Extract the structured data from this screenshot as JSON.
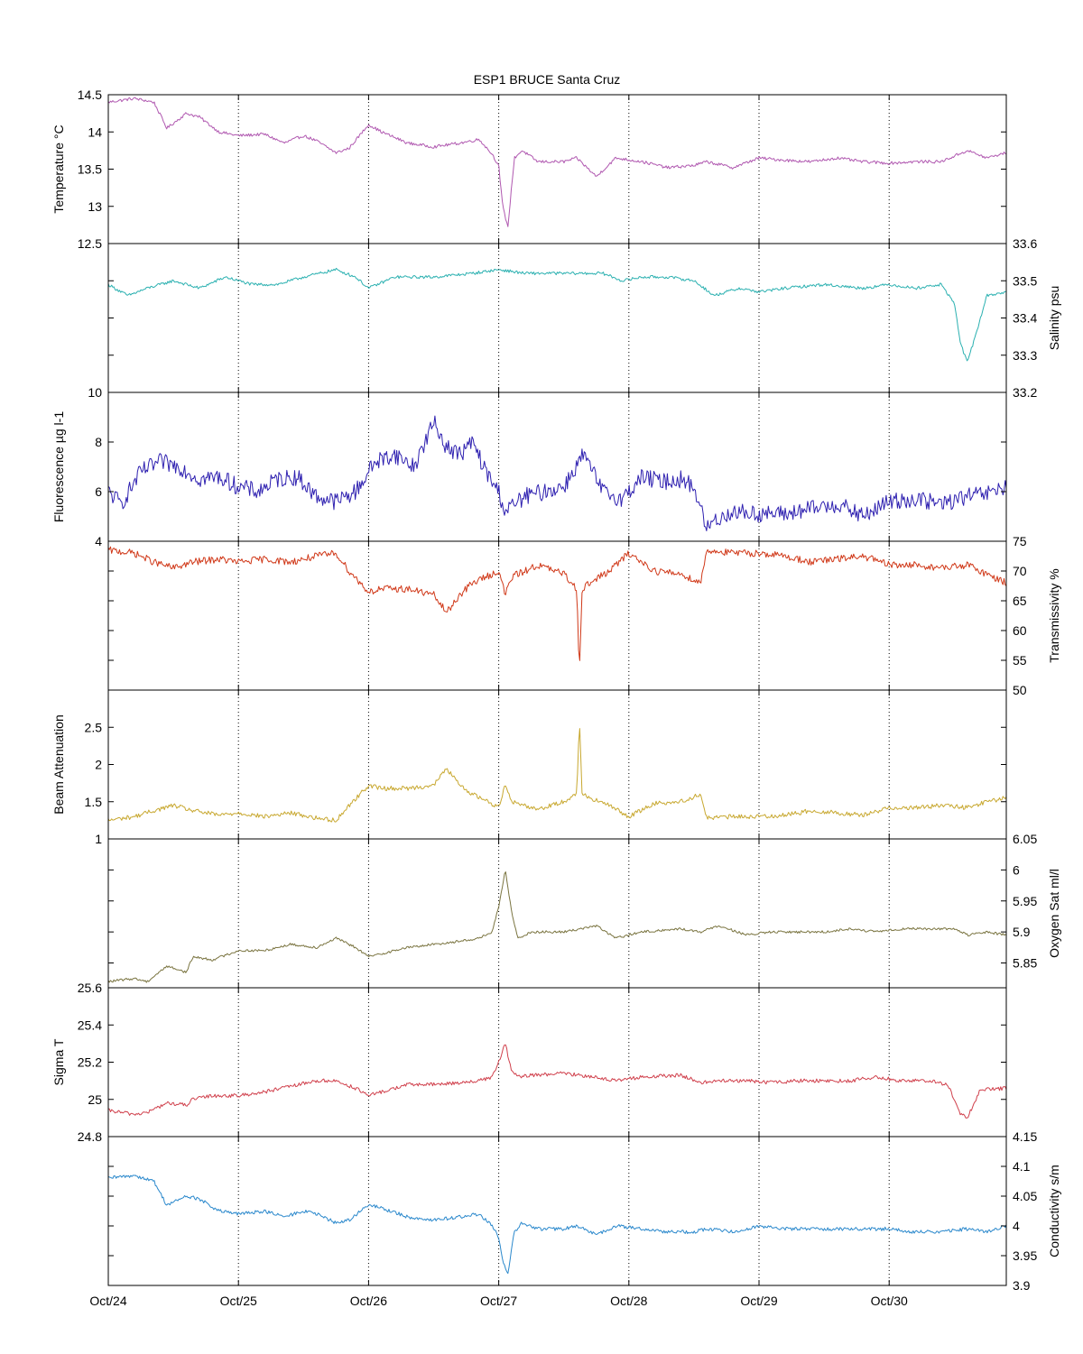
{
  "chart_data": [
    {
      "type": "line",
      "title": "ESP1 BRUCE Santa Cruz",
      "ylabel": "Temperature °C",
      "ylabel_side": "left",
      "ylim": [
        12.5,
        14.5
      ],
      "yticks": [
        "12.5",
        "13",
        "13.5",
        "14",
        "14.5"
      ],
      "xlim": [
        0,
        6.9
      ],
      "grid": "vertical dotted",
      "series": [
        {
          "color": "#b058b0",
          "x": [
            0,
            0.2,
            0.35,
            0.45,
            0.6,
            0.7,
            0.85,
            1.0,
            1.2,
            1.35,
            1.5,
            1.6,
            1.75,
            1.85,
            2.0,
            2.1,
            2.3,
            2.5,
            2.7,
            2.85,
            2.95,
            3.0,
            3.03,
            3.07,
            3.12,
            3.18,
            3.3,
            3.5,
            3.6,
            3.75,
            3.9,
            4.1,
            4.3,
            4.5,
            4.6,
            4.8,
            5.0,
            5.2,
            5.4,
            5.6,
            5.8,
            6.0,
            6.2,
            6.4,
            6.6,
            6.75,
            6.9
          ],
          "y": [
            14.4,
            14.45,
            14.4,
            14.05,
            14.25,
            14.2,
            14.0,
            13.95,
            13.97,
            13.85,
            13.95,
            13.88,
            13.72,
            13.78,
            14.1,
            14.0,
            13.85,
            13.8,
            13.85,
            13.9,
            13.7,
            13.55,
            13.0,
            12.72,
            13.65,
            13.75,
            13.6,
            13.6,
            13.65,
            13.4,
            13.65,
            13.6,
            13.52,
            13.55,
            13.6,
            13.52,
            13.65,
            13.62,
            13.6,
            13.65,
            13.6,
            13.58,
            13.6,
            13.6,
            13.75,
            13.65,
            13.72
          ],
          "noise": 0.02
        }
      ]
    },
    {
      "type": "line",
      "ylabel": "Salinity psu",
      "ylabel_side": "right",
      "ylim": [
        33.2,
        33.6
      ],
      "yticks": [
        "33.2",
        "33.3",
        "33.4",
        "33.5",
        "33.6"
      ],
      "xlim": [
        0,
        6.9
      ],
      "grid": "vertical dotted",
      "series": [
        {
          "color": "#2ab0b0",
          "x": [
            0,
            0.15,
            0.3,
            0.5,
            0.7,
            0.9,
            1.1,
            1.3,
            1.5,
            1.75,
            1.9,
            2.0,
            2.2,
            2.5,
            2.8,
            3.0,
            3.2,
            3.5,
            3.8,
            3.95,
            4.1,
            4.3,
            4.5,
            4.58,
            4.65,
            4.85,
            5.0,
            5.2,
            5.5,
            5.8,
            6.0,
            6.2,
            6.4,
            6.5,
            6.55,
            6.6,
            6.67,
            6.75,
            6.9
          ],
          "y": [
            33.49,
            33.46,
            33.48,
            33.5,
            33.48,
            33.51,
            33.49,
            33.49,
            33.51,
            33.53,
            33.51,
            33.48,
            33.51,
            33.51,
            33.52,
            33.53,
            33.52,
            33.52,
            33.52,
            33.5,
            33.51,
            33.51,
            33.5,
            33.48,
            33.46,
            33.48,
            33.47,
            33.48,
            33.49,
            33.48,
            33.49,
            33.48,
            33.49,
            33.44,
            33.33,
            33.28,
            33.36,
            33.46,
            33.47
          ],
          "noise": 0.004
        }
      ]
    },
    {
      "type": "line",
      "ylabel": "Fluorescence µg l-1",
      "ylabel_side": "left",
      "ylim": [
        4,
        10
      ],
      "yticks": [
        "4",
        "6",
        "8",
        "10"
      ],
      "xlim": [
        0,
        6.9
      ],
      "grid": "vertical dotted",
      "series": [
        {
          "color": "#2e20b0",
          "x": [
            0,
            0.1,
            0.25,
            0.4,
            0.55,
            0.7,
            0.85,
            1.0,
            1.15,
            1.3,
            1.45,
            1.6,
            1.75,
            1.9,
            2.05,
            2.2,
            2.35,
            2.5,
            2.6,
            2.7,
            2.8,
            2.9,
            3.0,
            3.05,
            3.2,
            3.35,
            3.5,
            3.65,
            3.8,
            3.95,
            4.1,
            4.25,
            4.4,
            4.5,
            4.6,
            4.65,
            4.8,
            5.0,
            5.2,
            5.4,
            5.6,
            5.8,
            6.0,
            6.2,
            6.4,
            6.6,
            6.75,
            6.9
          ],
          "y": [
            6.0,
            5.5,
            6.8,
            7.2,
            7.0,
            6.5,
            6.6,
            6.2,
            6.0,
            6.5,
            6.6,
            5.8,
            5.6,
            6.0,
            7.2,
            7.5,
            7.0,
            8.8,
            7.8,
            7.5,
            8.0,
            6.8,
            6.0,
            5.2,
            5.8,
            6.0,
            6.2,
            7.5,
            6.0,
            5.7,
            6.6,
            6.4,
            6.5,
            6.2,
            4.5,
            4.8,
            5.2,
            5.1,
            5.1,
            5.3,
            5.5,
            5.0,
            5.6,
            5.7,
            5.5,
            5.8,
            5.9,
            6.2
          ],
          "noise": 0.35
        }
      ]
    },
    {
      "type": "line",
      "ylabel": "Transmissivity %",
      "ylabel_side": "right",
      "ylim": [
        50,
        75
      ],
      "yticks": [
        "50",
        "55",
        "60",
        "65",
        "70",
        "75"
      ],
      "xlim": [
        0,
        6.9
      ],
      "grid": "vertical dotted",
      "series": [
        {
          "color": "#d03818",
          "x": [
            0,
            0.2,
            0.35,
            0.5,
            0.65,
            0.85,
            1.0,
            1.2,
            1.4,
            1.6,
            1.75,
            1.85,
            2.0,
            2.1,
            2.3,
            2.5,
            2.6,
            2.7,
            2.8,
            2.9,
            3.0,
            3.05,
            3.1,
            3.3,
            3.5,
            3.6,
            3.62,
            3.64,
            3.7,
            3.85,
            4.0,
            4.2,
            4.4,
            4.55,
            4.6,
            4.8,
            5.0,
            5.2,
            5.4,
            5.6,
            5.8,
            6.0,
            6.2,
            6.4,
            6.6,
            6.75,
            6.9
          ],
          "y": [
            73.5,
            73.0,
            71.5,
            70.5,
            71.5,
            72.0,
            71.5,
            72.0,
            71.5,
            72.5,
            73.0,
            70.0,
            66.5,
            67.0,
            67.0,
            66.0,
            63.0,
            66.0,
            68.0,
            69.0,
            70.0,
            66.0,
            69.0,
            71.0,
            69.5,
            67.0,
            53.0,
            67.0,
            68.0,
            70.0,
            73.0,
            70.0,
            69.5,
            68.0,
            73.5,
            73.0,
            73.0,
            72.5,
            71.5,
            72.0,
            72.5,
            71.0,
            71.0,
            70.5,
            71.0,
            69.5,
            68.0
          ],
          "noise": 0.6
        }
      ]
    },
    {
      "type": "line",
      "ylabel": "Beam Attenuation",
      "ylabel_side": "left",
      "ylim": [
        1,
        3
      ],
      "yticks": [
        "1",
        "1.5",
        "2",
        "2.5"
      ],
      "xlim": [
        0,
        6.9
      ],
      "grid": "vertical dotted",
      "series": [
        {
          "color": "#c8a830",
          "x": [
            0,
            0.2,
            0.35,
            0.5,
            0.65,
            0.85,
            1.0,
            1.2,
            1.4,
            1.6,
            1.75,
            1.85,
            2.0,
            2.1,
            2.3,
            2.5,
            2.6,
            2.7,
            2.8,
            2.9,
            3.0,
            3.05,
            3.1,
            3.3,
            3.5,
            3.6,
            3.62,
            3.64,
            3.7,
            3.85,
            4.0,
            4.2,
            4.4,
            4.55,
            4.6,
            4.8,
            5.0,
            5.2,
            5.4,
            5.6,
            5.8,
            6.0,
            6.2,
            6.4,
            6.6,
            6.75,
            6.9
          ],
          "y": [
            1.25,
            1.3,
            1.38,
            1.45,
            1.38,
            1.32,
            1.35,
            1.3,
            1.35,
            1.28,
            1.25,
            1.45,
            1.72,
            1.68,
            1.68,
            1.72,
            1.95,
            1.72,
            1.6,
            1.52,
            1.42,
            1.75,
            1.5,
            1.4,
            1.5,
            1.62,
            2.6,
            1.62,
            1.55,
            1.45,
            1.3,
            1.48,
            1.5,
            1.6,
            1.28,
            1.3,
            1.3,
            1.32,
            1.38,
            1.35,
            1.32,
            1.42,
            1.42,
            1.45,
            1.42,
            1.5,
            1.55
          ],
          "noise": 0.03
        }
      ]
    },
    {
      "type": "line",
      "ylabel": "Oxygen Sat ml/l",
      "ylabel_side": "right",
      "ylim": [
        5.81,
        6.05
      ],
      "yticks": [
        "5.85",
        "5.9",
        "5.95",
        "6",
        "6.05"
      ],
      "xlim": [
        0,
        6.9
      ],
      "grid": "vertical dotted",
      "series": [
        {
          "color": "#7a7440",
          "x": [
            0,
            0.2,
            0.3,
            0.45,
            0.6,
            0.65,
            0.8,
            1.0,
            1.2,
            1.4,
            1.6,
            1.75,
            1.9,
            2.0,
            2.1,
            2.3,
            2.5,
            2.7,
            2.85,
            2.95,
            3.0,
            3.05,
            3.1,
            3.15,
            3.25,
            3.5,
            3.75,
            3.9,
            4.1,
            4.4,
            4.55,
            4.7,
            4.9,
            5.1,
            5.3,
            5.5,
            5.7,
            5.9,
            6.1,
            6.3,
            6.5,
            6.6,
            6.75,
            6.9
          ],
          "y": [
            5.82,
            5.825,
            5.82,
            5.845,
            5.835,
            5.86,
            5.855,
            5.87,
            5.87,
            5.88,
            5.875,
            5.89,
            5.875,
            5.86,
            5.865,
            5.875,
            5.88,
            5.885,
            5.89,
            5.9,
            5.94,
            6.0,
            5.93,
            5.89,
            5.9,
            5.9,
            5.91,
            5.89,
            5.9,
            5.905,
            5.9,
            5.91,
            5.895,
            5.9,
            5.9,
            5.9,
            5.905,
            5.9,
            5.905,
            5.905,
            5.905,
            5.895,
            5.9,
            5.895
          ],
          "noise": 0.002
        }
      ]
    },
    {
      "type": "line",
      "ylabel": "Sigma T",
      "ylabel_side": "left",
      "ylim": [
        24.8,
        25.6
      ],
      "yticks": [
        "24.8",
        "25",
        "25.2",
        "25.4",
        "25.6"
      ],
      "xlim": [
        0,
        6.9
      ],
      "grid": "vertical dotted",
      "series": [
        {
          "color": "#d0404c",
          "x": [
            0,
            0.2,
            0.3,
            0.45,
            0.6,
            0.65,
            0.8,
            1.0,
            1.2,
            1.4,
            1.6,
            1.75,
            1.9,
            2.0,
            2.1,
            2.3,
            2.5,
            2.7,
            2.85,
            2.95,
            3.0,
            3.05,
            3.1,
            3.15,
            3.25,
            3.5,
            3.75,
            3.9,
            4.1,
            4.4,
            4.55,
            4.7,
            4.9,
            5.1,
            5.3,
            5.5,
            5.7,
            5.9,
            6.1,
            6.3,
            6.45,
            6.55,
            6.6,
            6.7,
            6.9
          ],
          "y": [
            24.94,
            24.92,
            24.93,
            24.98,
            24.97,
            25.0,
            25.02,
            25.02,
            25.04,
            25.07,
            25.1,
            25.1,
            25.06,
            25.02,
            25.04,
            25.08,
            25.08,
            25.09,
            25.1,
            25.12,
            25.2,
            25.3,
            25.15,
            25.12,
            25.13,
            25.14,
            25.12,
            25.1,
            25.12,
            25.13,
            25.09,
            25.1,
            25.1,
            25.09,
            25.1,
            25.1,
            25.1,
            25.12,
            25.1,
            25.1,
            25.08,
            24.92,
            24.9,
            25.05,
            25.06
          ],
          "noise": 0.01
        }
      ]
    },
    {
      "type": "line",
      "ylabel": "Conductivity s/m",
      "ylabel_side": "right",
      "ylim": [
        3.9,
        4.15
      ],
      "yticks": [
        "3.9",
        "3.95",
        "4",
        "4.05",
        "4.1",
        "4.15"
      ],
      "xlim": [
        0,
        6.9
      ],
      "xticks": [
        "Oct/24",
        "Oct/25",
        "Oct/26",
        "Oct/27",
        "Oct/28",
        "Oct/29",
        "Oct/30"
      ],
      "grid": "vertical dotted",
      "series": [
        {
          "color": "#2a88cc",
          "x": [
            0,
            0.2,
            0.35,
            0.45,
            0.6,
            0.7,
            0.85,
            1.0,
            1.2,
            1.35,
            1.5,
            1.6,
            1.75,
            1.85,
            2.0,
            2.1,
            2.3,
            2.5,
            2.7,
            2.85,
            2.95,
            3.0,
            3.03,
            3.07,
            3.12,
            3.18,
            3.3,
            3.5,
            3.6,
            3.75,
            3.9,
            4.1,
            4.3,
            4.5,
            4.6,
            4.8,
            5.0,
            5.2,
            5.4,
            5.6,
            5.8,
            6.0,
            6.2,
            6.4,
            6.6,
            6.75,
            6.9
          ],
          "y": [
            4.08,
            4.085,
            4.075,
            4.035,
            4.05,
            4.045,
            4.025,
            4.02,
            4.025,
            4.015,
            4.025,
            4.02,
            4.005,
            4.01,
            4.035,
            4.03,
            4.015,
            4.01,
            4.015,
            4.02,
            4.0,
            3.98,
            3.94,
            3.92,
            3.99,
            4.005,
            3.995,
            3.995,
            4.0,
            3.985,
            4.0,
            3.995,
            3.99,
            3.99,
            3.995,
            3.99,
            4.0,
            3.995,
            3.995,
            3.995,
            3.995,
            3.995,
            3.99,
            3.99,
            3.995,
            3.99,
            4.0
          ],
          "noise": 0.003
        }
      ]
    }
  ]
}
